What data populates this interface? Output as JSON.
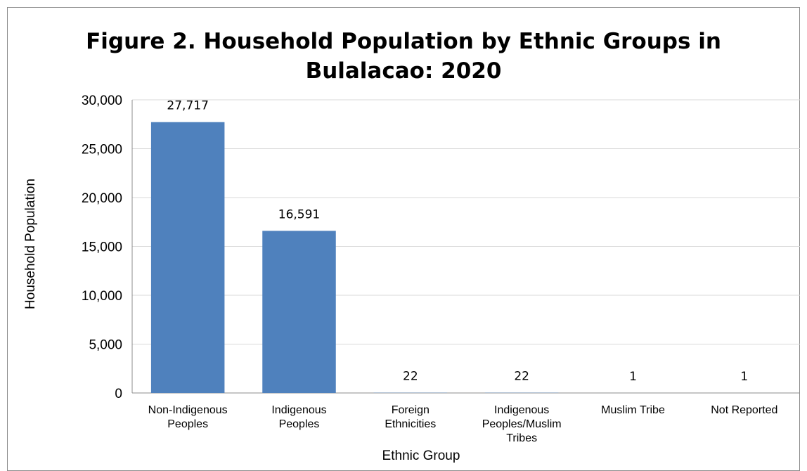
{
  "chart_data": {
    "type": "bar",
    "title_lines": [
      "Figure 2. Household Population by Ethnic Groups in",
      "Bulalacao: 2020"
    ],
    "xlabel": "Ethnic Group",
    "ylabel": "Household Population",
    "ylim": [
      0,
      30000
    ],
    "yticks": [
      "0",
      "5,000",
      "10,000",
      "15,000",
      "20,000",
      "25,000",
      "30,000"
    ],
    "categories": [
      [
        "Non-Indigenous",
        "Peoples"
      ],
      [
        "Indigenous",
        "Peoples"
      ],
      [
        "Foreign",
        "Ethnicities"
      ],
      [
        "Indigenous",
        "Peoples/Muslim",
        "Tribes"
      ],
      [
        "Muslim Tribe"
      ],
      [
        "Not Reported"
      ]
    ],
    "values": [
      27717,
      16591,
      22,
      22,
      1,
      1
    ],
    "data_labels": [
      "27,717",
      "16,591",
      "22",
      "22",
      "1",
      "1"
    ],
    "bar_color": "#4f81bd",
    "grid_color": "#d9d9d9",
    "grid": true,
    "legend": "none"
  }
}
